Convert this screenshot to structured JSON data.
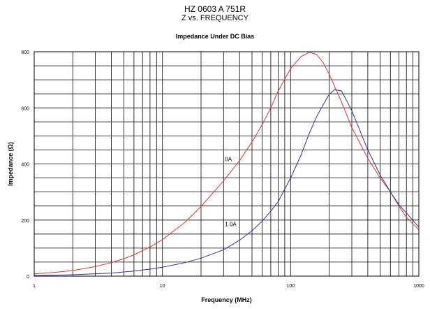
{
  "header": {
    "title": "HZ 0603 A 751R",
    "subtitle": "Z vs. FREQUENCY"
  },
  "chart_data": {
    "type": "line",
    "title": "Impedance Under DC Bias",
    "xlabel": "Frequency (MHz)",
    "ylabel": "Impedance (Ω)",
    "xscale": "log",
    "xlim": [
      1,
      1000
    ],
    "ylim": [
      0,
      800
    ],
    "x_ticks": [
      "1",
      "10",
      "100",
      "1000"
    ],
    "y_ticks": [
      "0",
      "200",
      "400",
      "600",
      "800"
    ],
    "grid": true,
    "legend": "none",
    "series": [
      {
        "name": "0A",
        "color": "#e8312c",
        "x": [
          1,
          1.5,
          2,
          3,
          4,
          5,
          6,
          8,
          10,
          15,
          20,
          30,
          40,
          50,
          60,
          70,
          80,
          100,
          120,
          140,
          160,
          180,
          200,
          250,
          300,
          400,
          500,
          600,
          700,
          800,
          1000
        ],
        "y": [
          8,
          14,
          20,
          34,
          48,
          62,
          76,
          104,
          130,
          192,
          248,
          340,
          412,
          478,
          540,
          600,
          660,
          740,
          782,
          798,
          790,
          760,
          720,
          620,
          530,
          420,
          350,
          300,
          250,
          210,
          165
        ]
      },
      {
        "name": "1.0A",
        "color": "#2e3196",
        "x": [
          1,
          2,
          4,
          6,
          8,
          10,
          15,
          20,
          30,
          40,
          50,
          60,
          70,
          80,
          100,
          120,
          140,
          160,
          180,
          200,
          220,
          250,
          300,
          400,
          500,
          600,
          700,
          800,
          1000
        ],
        "y": [
          2,
          5,
          11,
          18,
          25,
          32,
          48,
          64,
          94,
          128,
          162,
          196,
          232,
          266,
          350,
          430,
          510,
          570,
          612,
          648,
          665,
          660,
          590,
          450,
          360,
          300,
          255,
          225,
          175
        ]
      }
    ],
    "annotations": [
      {
        "text": "0A",
        "x": 30,
        "y": 400
      },
      {
        "text": "1.0A",
        "x": 30,
        "y": 168
      }
    ]
  }
}
